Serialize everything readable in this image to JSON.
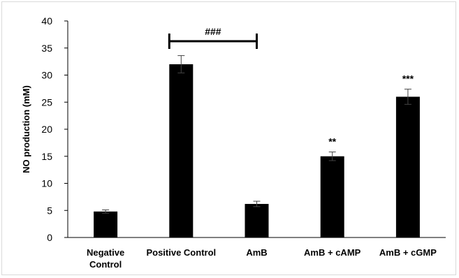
{
  "chart_data": {
    "type": "bar",
    "categories": [
      "Negative Control",
      "Positive Control",
      "AmB",
      "AmB + cAMP",
      "AmB + cGMP"
    ],
    "category_lines": [
      [
        "Negative",
        "Control"
      ],
      [
        "Positive Control"
      ],
      [
        "AmB"
      ],
      [
        "AmB + cAMP"
      ],
      [
        "AmB + cGMP"
      ]
    ],
    "values": [
      4.8,
      32,
      6.2,
      15,
      26
    ],
    "errors": [
      0.3,
      1.6,
      0.5,
      0.8,
      1.4
    ],
    "significance": [
      "",
      "",
      "",
      "**",
      "***"
    ],
    "bracket": {
      "from": 1,
      "to": 2,
      "label": "###"
    },
    "title": "",
    "xlabel": "",
    "ylabel": "NO production  (mM)",
    "ylim": [
      0,
      40
    ],
    "yticks": [
      0,
      5,
      10,
      15,
      20,
      25,
      30,
      35,
      40
    ],
    "grid": false,
    "legend": "none",
    "bar_color": "#000000"
  }
}
